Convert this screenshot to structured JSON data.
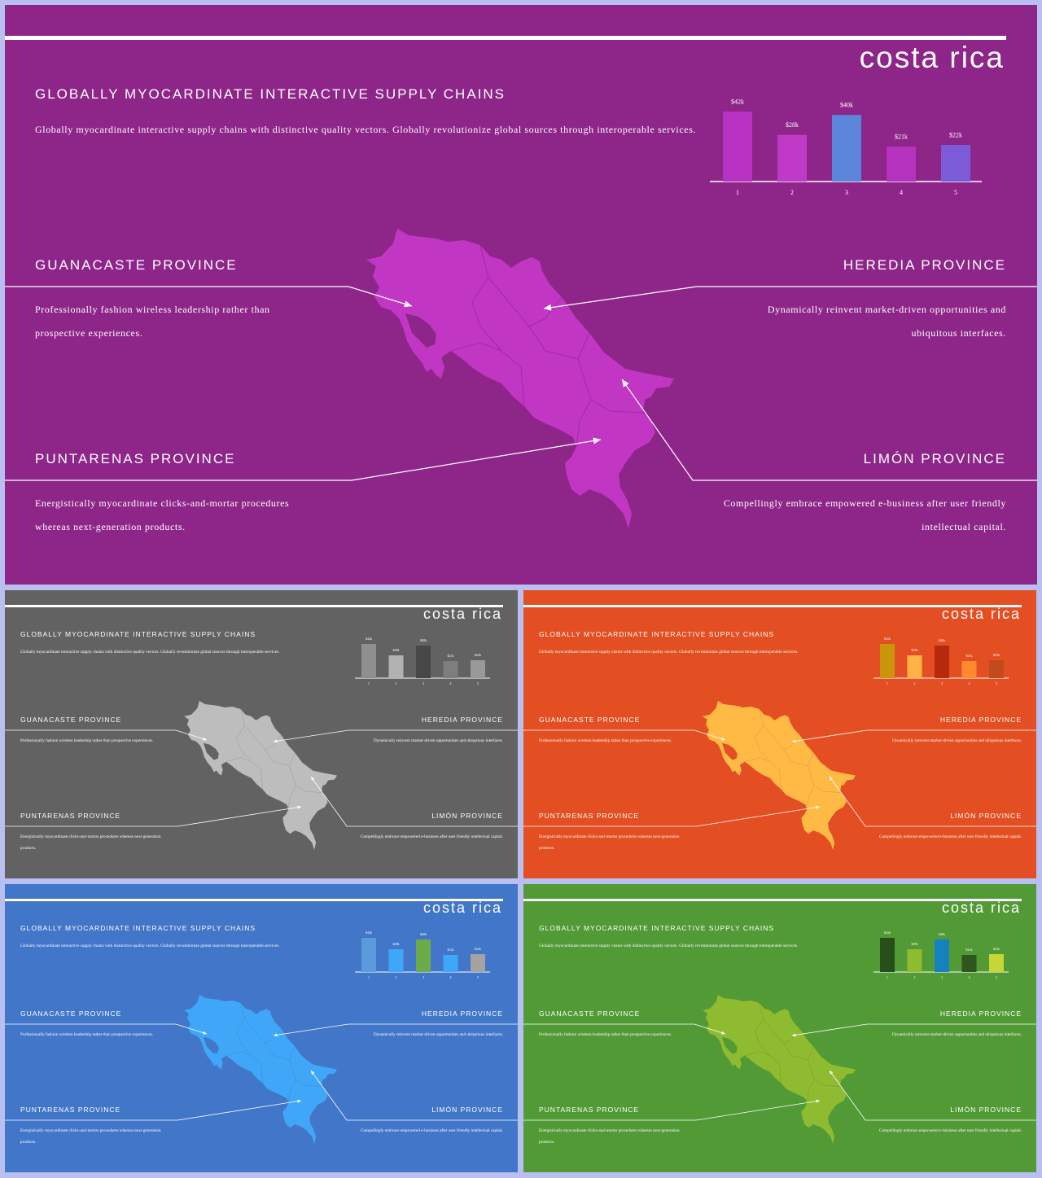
{
  "slide": {
    "title": "costa rica",
    "heading": "GLOBALLY  MYOCARDINATE  INTERACTIVE  SUPPLY  CHAINS",
    "body": "Globally myocardinate interactive supply chains with distinctive quality vectors. Globally revolutionize global sources through interoperable services.",
    "guanacaste": {
      "title": "GUANACASTE  PROVINCE",
      "text": "Professionally fashion wireless leadership rather than prospective experiences."
    },
    "heredia": {
      "title": "HEREDIA  PROVINCE",
      "text": "Dynamically reinvent market-driven opportunities and ubiquitous interfaces."
    },
    "puntarenas": {
      "title": "PUNTARENAS  PROVINCE",
      "text": "Energistically myocardinate clicks-and-mortar procedures whereas next-generation products."
    },
    "limon": {
      "title": "LIMÓN  PROVINCE",
      "text": "Compellingly embrace empowered e-business after user friendly intellectual capital."
    }
  },
  "chart_data": {
    "type": "bar",
    "categories": [
      "1",
      "2",
      "3",
      "4",
      "5"
    ],
    "values": [
      42,
      28,
      40,
      21,
      22
    ],
    "labels": [
      "$42k",
      "$28k",
      "$40k",
      "$21k",
      "$22k"
    ],
    "ylim": [
      0,
      48
    ]
  },
  "themes": [
    {
      "name": "purple",
      "bg": "#8e2689",
      "map": "#c236c4",
      "bars": [
        "#b833c1",
        "#c03ac8",
        "#5b86d9",
        "#b533bf",
        "#7c5bd9"
      ]
    },
    {
      "name": "gray",
      "bg": "#626262",
      "map": "#bdbdbd",
      "bars": [
        "#8f8f8f",
        "#b2b2b2",
        "#474747",
        "#7e7e7e",
        "#999999"
      ]
    },
    {
      "name": "orange",
      "bg": "#e34f22",
      "map": "#ffba46",
      "bars": [
        "#c9960b",
        "#ffb344",
        "#b52a0b",
        "#ff8a2d",
        "#c14b1c"
      ]
    },
    {
      "name": "blue",
      "bg": "#4276c8",
      "map": "#40a7f8",
      "bars": [
        "#5b9bdb",
        "#3fa7f8",
        "#6bab4a",
        "#3fa7f8",
        "#a3a3a3"
      ]
    },
    {
      "name": "green",
      "bg": "#529a36",
      "map": "#8fbb30",
      "bars": [
        "#274f19",
        "#8fbb30",
        "#1582bd",
        "#2f561f",
        "#c6d635"
      ]
    }
  ]
}
